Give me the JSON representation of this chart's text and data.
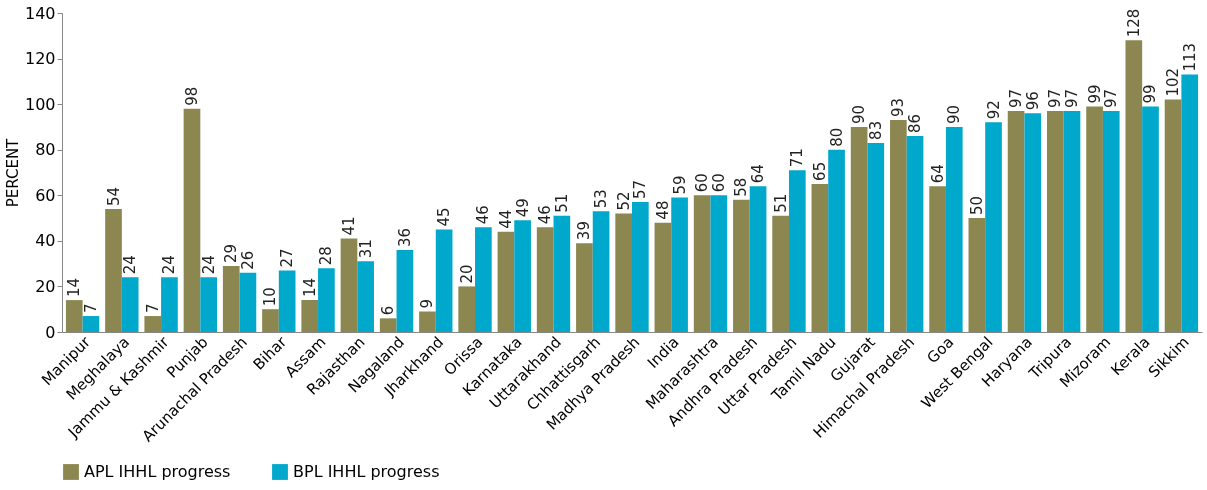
{
  "chart_data": {
    "type": "bar",
    "ylabel": "PERCENT",
    "ylim": [
      0,
      140
    ],
    "yticks": [
      0,
      20,
      40,
      60,
      80,
      100,
      120,
      140
    ],
    "grid": false,
    "legend": "bottom",
    "data_labels": true,
    "categories": [
      "Manipur",
      "Meghalaya",
      "Jammu & Kashmir",
      "Punjab",
      "Arunachal Pradesh",
      "Bihar",
      "Assam",
      "Rajasthan",
      "Nagaland",
      "Jharkhand",
      "Orissa",
      "Karnataka",
      "Uttarakhand",
      "Chhattisgarh",
      "Madhya Pradesh",
      "India",
      "Maharashtra",
      "Andhra Pradesh",
      "Uttar Pradesh",
      "Tamil Nadu",
      "Gujarat",
      "Himachal Pradesh",
      "Goa",
      "West Bengal",
      "Haryana",
      "Tripura",
      "Mizoram",
      "Kerala",
      "Sikkim"
    ],
    "series": [
      {
        "name": "APL IHHL progress",
        "color": "#8c8750",
        "values": [
          14,
          54,
          7,
          98,
          29,
          10,
          14,
          41,
          6,
          9,
          20,
          44,
          46,
          39,
          52,
          48,
          60,
          58,
          51,
          65,
          90,
          93,
          64,
          50,
          97,
          97,
          99,
          128,
          102
        ]
      },
      {
        "name": "BPL IHHL progress",
        "color": "#00a8cc",
        "values": [
          7,
          24,
          24,
          24,
          26,
          27,
          28,
          31,
          36,
          45,
          46,
          49,
          51,
          53,
          57,
          59,
          60,
          64,
          71,
          80,
          83,
          86,
          90,
          92,
          96,
          97,
          97,
          99,
          113
        ]
      }
    ]
  }
}
